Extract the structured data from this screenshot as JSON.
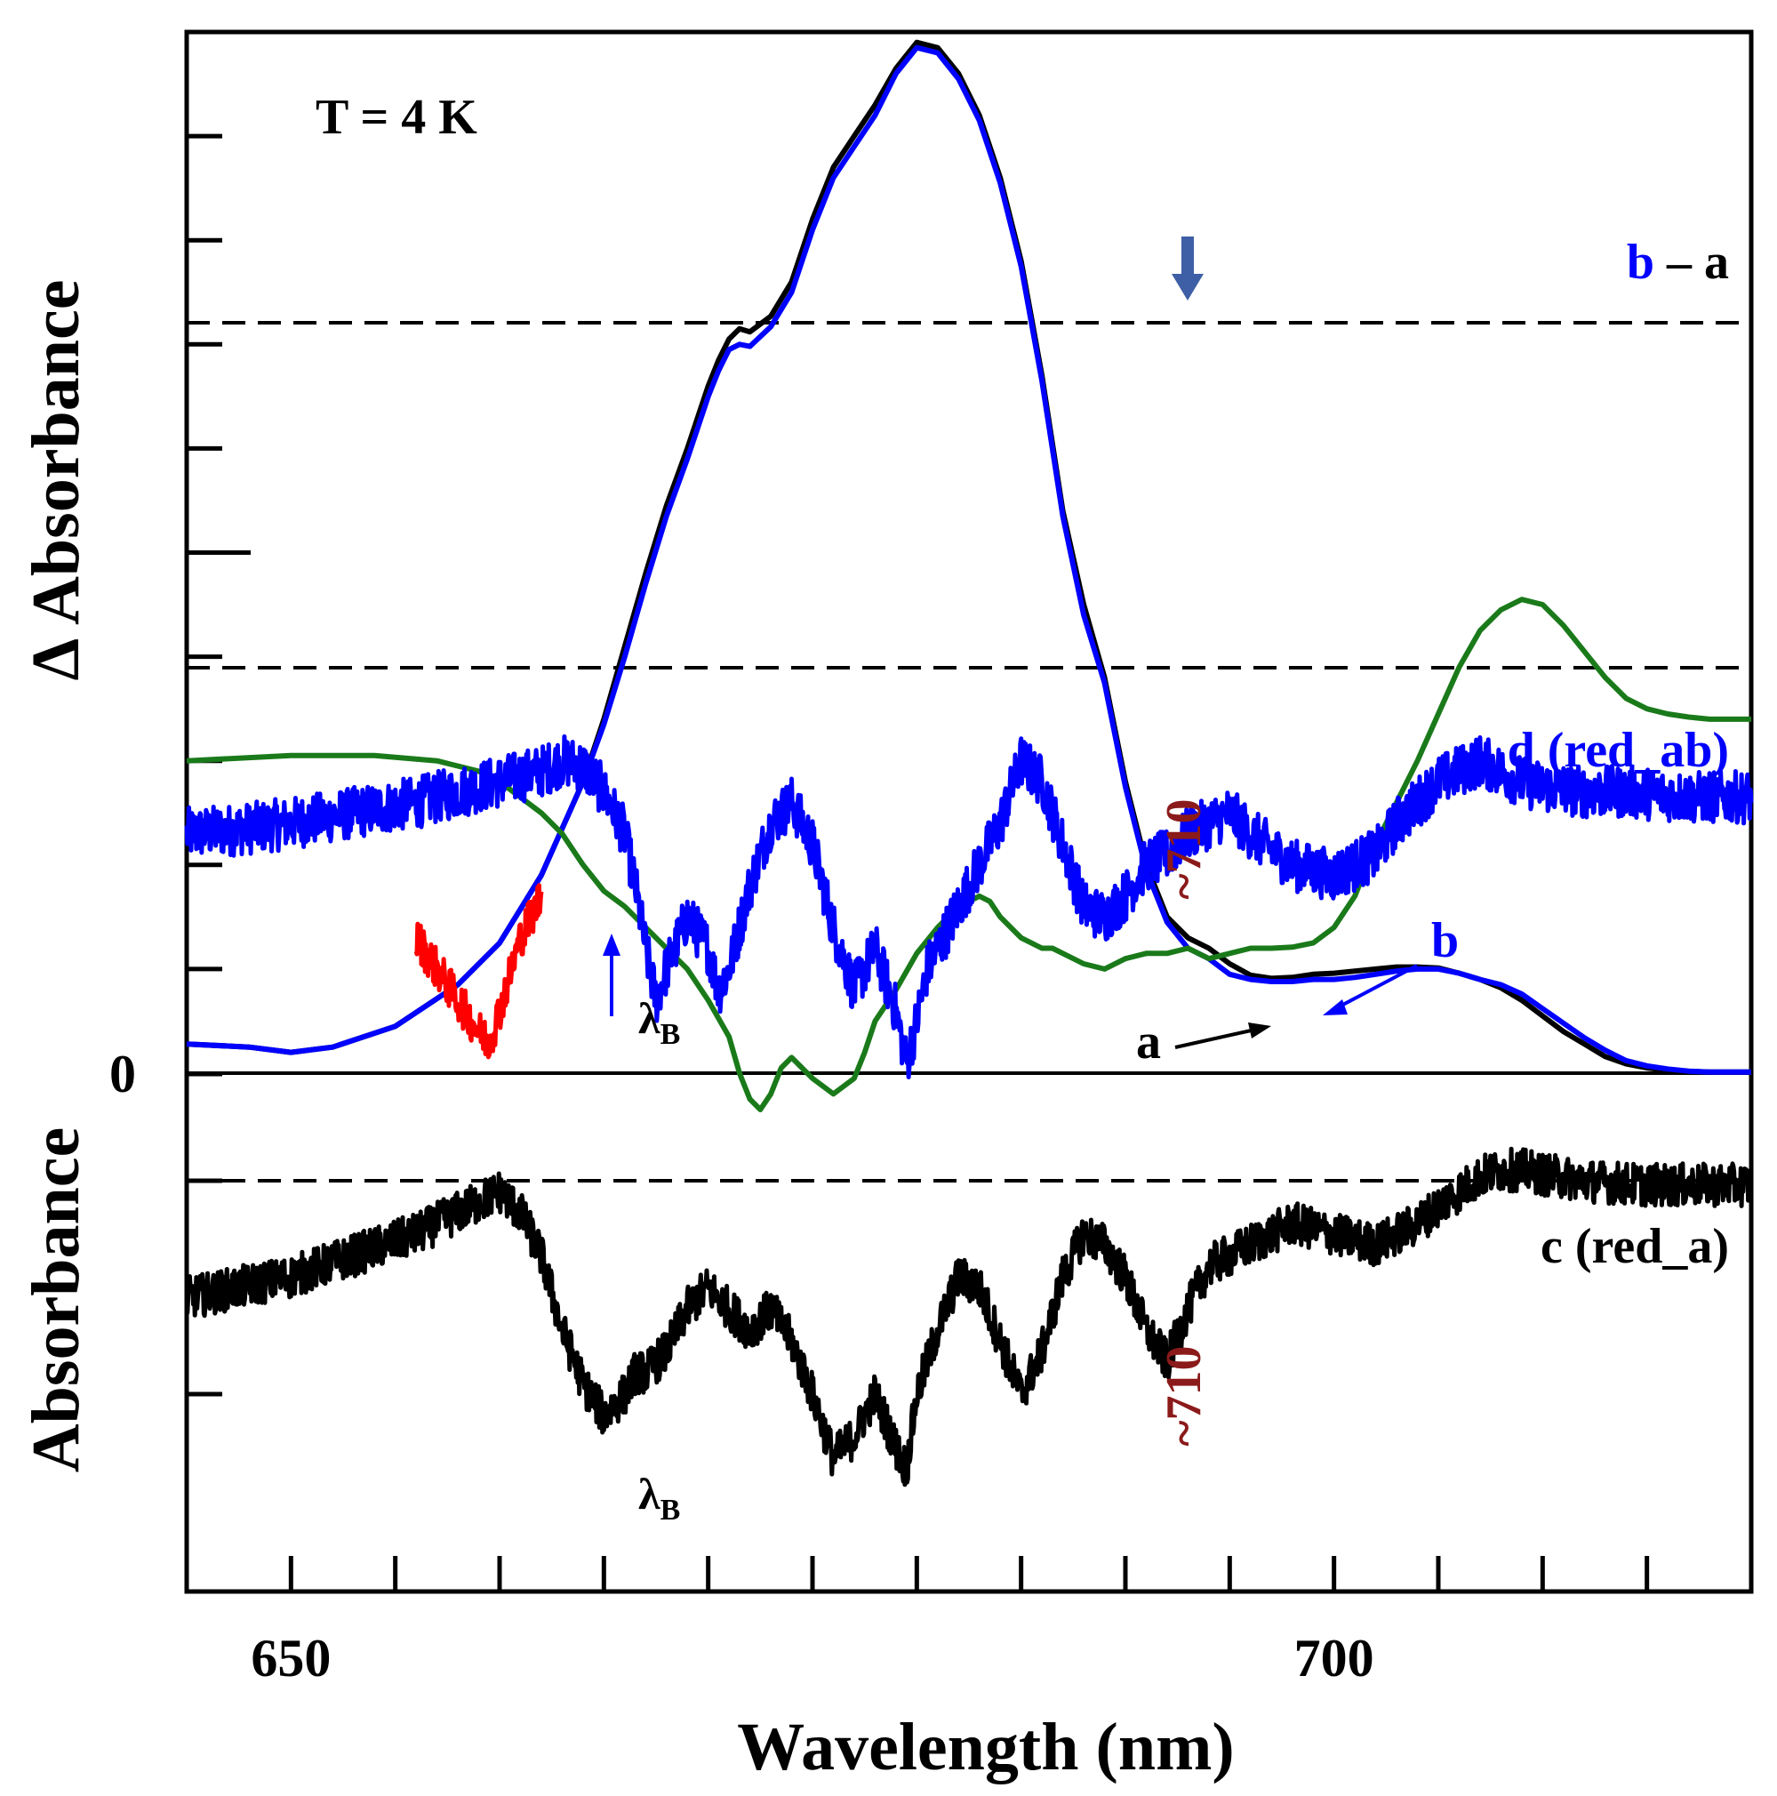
{
  "chart_data": {
    "type": "line",
    "x_domain": [
      645,
      720
    ],
    "upper_axis_range": [
      0,
      1
    ],
    "lower_axis_range": [
      -1,
      1
    ],
    "xlabel": "Wavelength (nm)",
    "ylabel_upper": "Δ Absorbance",
    "ylabel_lower": "Absorbance",
    "x_ticks": [
      650,
      700
    ],
    "x_tick_positions": [
      650,
      655,
      660,
      665,
      670,
      675,
      680,
      685,
      690,
      695,
      700,
      705,
      710,
      715,
      720
    ],
    "zero_label": "0",
    "temperature_label": "T = 4 K",
    "series": [
      {
        "name": "a",
        "color": "#000000",
        "panel": "upper",
        "x": [
          645.0,
          648.0,
          650.0,
          652.0,
          655.0,
          658.0,
          660.0,
          662.0,
          664.0,
          665.0,
          666.0,
          667.0,
          668.0,
          669.0,
          670.0,
          670.5,
          671.0,
          671.5,
          672.0,
          673.0,
          674.0,
          675.0,
          676.0,
          677.0,
          678.0,
          679.0,
          680.0,
          681.0,
          682.0,
          683.0,
          684.0,
          685.0,
          686.0,
          687.0,
          688.0,
          689.0,
          690.0,
          691.0,
          692.0,
          693.0,
          694.0,
          695.0,
          696.0,
          697.0,
          698.0,
          699.0,
          700.0,
          701.0,
          702.0,
          703.0,
          704.0,
          705.0,
          706.0,
          707.0,
          708.0,
          709.0,
          710.0,
          711.0,
          712.0,
          713.0,
          714.0,
          715.0,
          716.0,
          717.0,
          718.0,
          720.0
        ],
        "y": [
          0.028,
          0.025,
          0.02,
          0.025,
          0.045,
          0.085,
          0.125,
          0.19,
          0.28,
          0.34,
          0.41,
          0.48,
          0.545,
          0.6,
          0.66,
          0.685,
          0.705,
          0.715,
          0.712,
          0.727,
          0.76,
          0.82,
          0.87,
          0.9,
          0.93,
          0.965,
          0.99,
          0.985,
          0.96,
          0.92,
          0.86,
          0.78,
          0.67,
          0.54,
          0.45,
          0.38,
          0.28,
          0.2,
          0.15,
          0.13,
          0.12,
          0.105,
          0.094,
          0.091,
          0.092,
          0.095,
          0.096,
          0.098,
          0.1,
          0.102,
          0.102,
          0.101,
          0.096,
          0.09,
          0.082,
          0.07,
          0.055,
          0.04,
          0.028,
          0.016,
          0.009,
          0.005,
          0.003,
          0.0017,
          0.001,
          0.001
        ]
      },
      {
        "name": "b",
        "color": "#0000ff",
        "panel": "upper",
        "x": [
          645.0,
          648.0,
          650.0,
          652.0,
          655.0,
          658.0,
          660.0,
          662.0,
          664.0,
          665.0,
          666.0,
          667.0,
          668.0,
          669.0,
          670.0,
          670.5,
          671.0,
          671.5,
          672.0,
          673.0,
          674.0,
          675.0,
          676.0,
          677.0,
          678.0,
          679.0,
          680.0,
          681.0,
          682.0,
          683.0,
          684.0,
          685.0,
          686.0,
          687.0,
          688.0,
          689.0,
          690.0,
          691.0,
          692.0,
          693.0,
          694.0,
          695.0,
          696.0,
          697.0,
          698.0,
          699.0,
          700.0,
          701.0,
          702.0,
          703.0,
          704.0,
          705.0,
          706.0,
          707.0,
          708.0,
          709.0,
          710.0,
          711.0,
          712.0,
          713.0,
          714.0,
          715.0,
          716.0,
          717.0,
          718.0,
          720.0
        ],
        "y": [
          0.028,
          0.025,
          0.02,
          0.025,
          0.045,
          0.085,
          0.125,
          0.19,
          0.28,
          0.335,
          0.4,
          0.47,
          0.535,
          0.59,
          0.65,
          0.675,
          0.695,
          0.7,
          0.698,
          0.717,
          0.75,
          0.81,
          0.86,
          0.89,
          0.92,
          0.96,
          0.985,
          0.98,
          0.955,
          0.915,
          0.855,
          0.775,
          0.665,
          0.535,
          0.44,
          0.375,
          0.275,
          0.195,
          0.145,
          0.12,
          0.11,
          0.095,
          0.09,
          0.088,
          0.088,
          0.09,
          0.09,
          0.092,
          0.095,
          0.098,
          0.1,
          0.1,
          0.096,
          0.09,
          0.085,
          0.076,
          0.062,
          0.048,
          0.034,
          0.022,
          0.012,
          0.007,
          0.004,
          0.002,
          0.001,
          0.001
        ]
      },
      {
        "name": "b – a",
        "color": "#1a7a1a",
        "panel": "upper",
        "x": [
          645.0,
          650.0,
          654.0,
          657.0,
          659.0,
          660.0,
          661.0,
          662.0,
          663.0,
          664.0,
          665.0,
          666.0,
          667.0,
          668.0,
          669.0,
          670.0,
          671.0,
          671.5,
          672.0,
          672.5,
          673.0,
          673.5,
          674.0,
          675.0,
          676.0,
          677.0,
          677.5,
          678.0,
          679.0,
          680.0,
          681.0,
          682.0,
          683.0,
          683.5,
          684.0,
          685.0,
          686.0,
          686.5,
          687.0,
          688.0,
          689.0,
          690.0,
          691.0,
          692.0,
          693.0,
          693.5,
          694.0,
          695.0,
          696.0,
          697.0,
          698.0,
          699.0,
          700.0,
          701.0,
          702.0,
          703.0,
          704.0,
          705.0,
          706.0,
          707.0,
          708.0,
          709.0,
          710.0,
          711.0,
          712.0,
          713.0,
          714.0,
          715.0,
          716.0,
          717.0,
          718.0,
          719.0,
          720.0
        ],
        "y": [
          0.3,
          0.305,
          0.305,
          0.3,
          0.29,
          0.28,
          0.265,
          0.25,
          0.23,
          0.2,
          0.175,
          0.16,
          0.14,
          0.12,
          0.1,
          0.07,
          0.035,
          0.0,
          -0.025,
          -0.035,
          -0.02,
          0.005,
          0.015,
          -0.005,
          -0.02,
          -0.005,
          0.02,
          0.05,
          0.08,
          0.115,
          0.14,
          0.16,
          0.17,
          0.165,
          0.15,
          0.13,
          0.12,
          0.12,
          0.115,
          0.105,
          0.1,
          0.11,
          0.115,
          0.115,
          0.12,
          0.115,
          0.11,
          0.115,
          0.12,
          0.12,
          0.121,
          0.125,
          0.14,
          0.17,
          0.22,
          0.26,
          0.3,
          0.345,
          0.39,
          0.425,
          0.445,
          0.455,
          0.45,
          0.43,
          0.405,
          0.38,
          0.36,
          0.35,
          0.345,
          0.342,
          0.34,
          0.34,
          0.34
        ]
      },
      {
        "name": "d (red_ab)",
        "color": "#0000ff",
        "panel": "upper",
        "noise": 0.025,
        "x": [
          645.0,
          648.0,
          650.0,
          653.0,
          656.0,
          658.0,
          660.0,
          662.0,
          663.0,
          664.0,
          665.0,
          666.0,
          666.5,
          667.0,
          667.5,
          668.0,
          669.0,
          670.0,
          670.5,
          671.0,
          672.0,
          673.0,
          674.0,
          675.0,
          676.0,
          677.0,
          678.0,
          679.0,
          679.5,
          680.0,
          680.5,
          681.0,
          682.0,
          683.0,
          684.0,
          685.0,
          686.0,
          687.0,
          688.0,
          689.0,
          690.0,
          691.0,
          692.0,
          693.0,
          694.0,
          695.0,
          696.0,
          698.0,
          700.0,
          702.0,
          703.0,
          704.0,
          705.0,
          706.0,
          707.0,
          708.0,
          709.0,
          710.0,
          712.0,
          714.0,
          717.0,
          720.0
        ],
        "y": [
          0.23,
          0.235,
          0.24,
          0.25,
          0.26,
          0.27,
          0.28,
          0.29,
          0.3,
          0.295,
          0.27,
          0.23,
          0.18,
          0.12,
          0.07,
          0.1,
          0.15,
          0.12,
          0.08,
          0.1,
          0.18,
          0.24,
          0.26,
          0.22,
          0.14,
          0.08,
          0.12,
          0.06,
          0.01,
          0.05,
          0.1,
          0.12,
          0.16,
          0.2,
          0.24,
          0.3,
          0.28,
          0.22,
          0.16,
          0.15,
          0.17,
          0.2,
          0.21,
          0.23,
          0.24,
          0.25,
          0.23,
          0.2,
          0.19,
          0.21,
          0.24,
          0.26,
          0.28,
          0.29,
          0.3,
          0.29,
          0.28,
          0.275,
          0.27,
          0.27,
          0.265,
          0.265
        ]
      },
      {
        "name": "c (red_a)",
        "color": "#000000",
        "panel": "lower",
        "noise": 0.1,
        "x": [
          645.0,
          650.0,
          653.0,
          656.0,
          658.0,
          660.0,
          661.0,
          662.0,
          663.0,
          664.0,
          665.0,
          666.0,
          666.5,
          667.0,
          668.0,
          669.0,
          670.0,
          671.0,
          672.0,
          673.0,
          674.0,
          675.0,
          676.0,
          677.0,
          678.0,
          679.0,
          679.5,
          680.0,
          681.0,
          682.0,
          683.0,
          684.0,
          685.0,
          686.0,
          687.0,
          688.0,
          689.0,
          690.0,
          691.0,
          692.0,
          693.0,
          694.0,
          695.0,
          696.0,
          698.0,
          700.0,
          702.0,
          703.0,
          704.0,
          705.0,
          706.0,
          707.0,
          708.0,
          709.0,
          710.0,
          712.0,
          715.0,
          720.0
        ],
        "y": [
          -0.55,
          -0.45,
          -0.35,
          -0.25,
          -0.15,
          -0.05,
          -0.15,
          -0.35,
          -0.7,
          -0.95,
          -1.1,
          -1.0,
          -0.9,
          -0.9,
          -0.8,
          -0.6,
          -0.5,
          -0.6,
          -0.7,
          -0.6,
          -0.75,
          -1.0,
          -1.3,
          -1.2,
          -1.0,
          -1.25,
          -1.35,
          -1.0,
          -0.7,
          -0.45,
          -0.5,
          -0.75,
          -1.0,
          -0.8,
          -0.45,
          -0.25,
          -0.3,
          -0.45,
          -0.7,
          -0.85,
          -0.6,
          -0.4,
          -0.35,
          -0.3,
          -0.2,
          -0.25,
          -0.3,
          -0.25,
          -0.2,
          -0.12,
          -0.05,
          0.02,
          0.05,
          0.05,
          0.03,
          0.0,
          -0.02,
          -0.02
        ]
      },
      {
        "name": "red hole",
        "color": "#ff0000",
        "panel": "upper",
        "noise": 0.02,
        "x": [
          656.0,
          657.0,
          658.0,
          659.0,
          659.5,
          660.0,
          661.0,
          662.0
        ],
        "y": [
          0.13,
          0.1,
          0.07,
          0.04,
          0.03,
          0.06,
          0.13,
          0.17
        ]
      }
    ],
    "annotations": {
      "b_minus_a_left": "b",
      "b_minus_a_right": " – a",
      "d_label": "d (red_ab)",
      "c_label": "c (red_a)",
      "a_label": "a",
      "b_label": "b",
      "lambda_upper": "λ",
      "lambda_upper_sub": "B",
      "lambda_lower": "λ",
      "lambda_lower_sub": "B",
      "marker_upper": "~710",
      "marker_lower": "~710"
    },
    "colors": {
      "green": "#1a7a1a",
      "blue": "#0000ff",
      "black": "#000000",
      "red": "#ff0000",
      "dark_red": "#8b1a1a",
      "arrow_down": "#3e5fa5"
    }
  }
}
